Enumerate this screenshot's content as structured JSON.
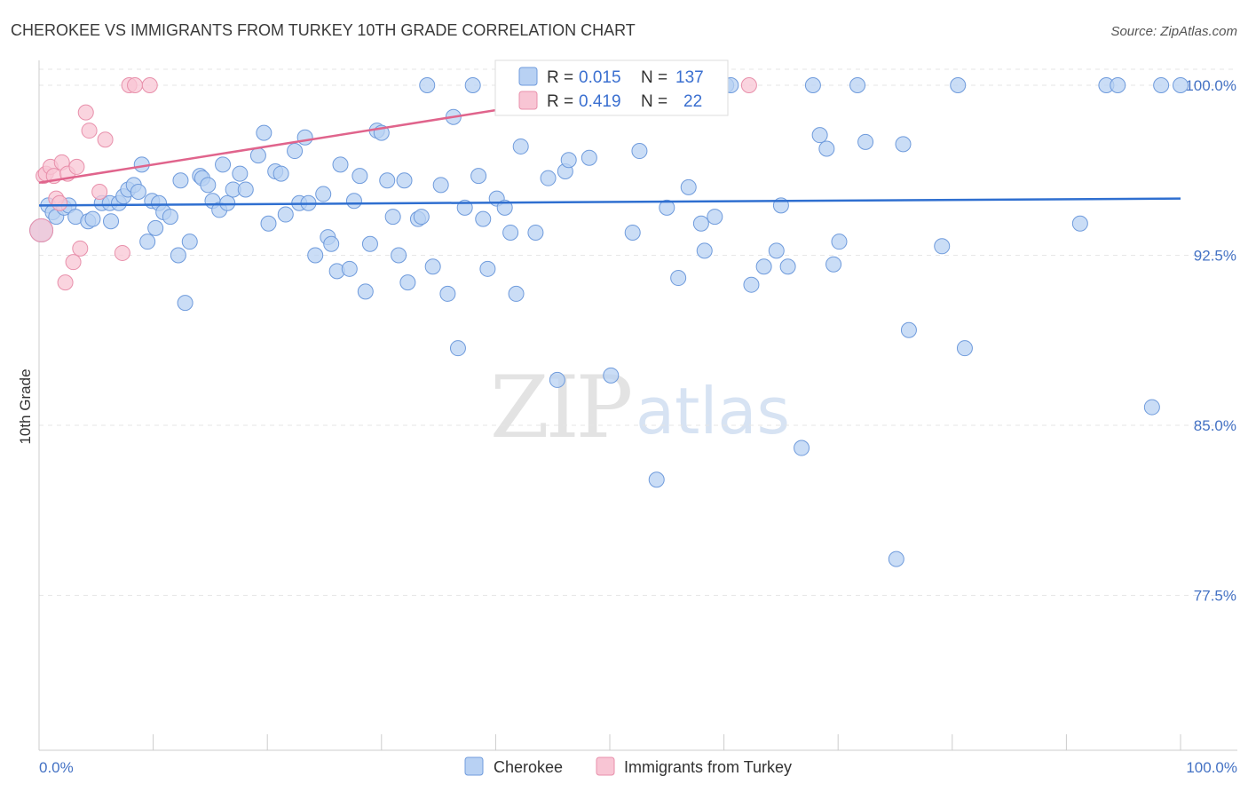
{
  "chart_data": {
    "type": "scatter",
    "title": "CHEROKEE VS IMMIGRANTS FROM TURKEY 10TH GRADE CORRELATION CHART",
    "source": "Source: ZipAtlas.com",
    "ylabel": "10th Grade",
    "xlabel": "",
    "xlim": [
      0,
      100
    ],
    "ylim": [
      70,
      101.2
    ],
    "x_tick_labels": [
      "0.0%",
      "100.0%"
    ],
    "y_ticks": [
      {
        "value": 100.0,
        "label": "100.0%"
      },
      {
        "value": 92.5,
        "label": "92.5%"
      },
      {
        "value": 85.0,
        "label": "85.0%"
      },
      {
        "value": 77.5,
        "label": "77.5%"
      }
    ],
    "watermark": {
      "zip": "ZIP",
      "atlas": "atlas"
    },
    "colors": {
      "cherokee_fill": "#b8d1f3",
      "cherokee_stroke": "#6f9bdc",
      "cherokee_line": "#2f6fd0",
      "turkey_fill": "#f8c5d4",
      "turkey_stroke": "#e890ab",
      "turkey_line": "#e0648c",
      "grid": "#e6e6e6",
      "axis_text": "#4472c4"
    },
    "legend": {
      "r_label": "R =",
      "n_label": "N =",
      "entries": [
        {
          "r": "0.015",
          "n": "137"
        },
        {
          "r": "0.419",
          "n": "22"
        }
      ]
    },
    "series": [
      {
        "name": "Cherokee",
        "trend": {
          "x": [
            0,
            100
          ],
          "y": [
            94.7,
            95.0
          ]
        },
        "points": [
          [
            0.2,
            93.6
          ],
          [
            0.8,
            94.7
          ],
          [
            1.2,
            94.4
          ],
          [
            1.5,
            94.2
          ],
          [
            2.2,
            94.6
          ],
          [
            2.6,
            94.7
          ],
          [
            3.2,
            94.2
          ],
          [
            4.3,
            94.0
          ],
          [
            4.7,
            94.1
          ],
          [
            5.5,
            94.8
          ],
          [
            6.2,
            94.8
          ],
          [
            6.3,
            94.0
          ],
          [
            7.0,
            94.8
          ],
          [
            7.4,
            95.1
          ],
          [
            7.8,
            95.4
          ],
          [
            8.3,
            95.6
          ],
          [
            8.7,
            95.3
          ],
          [
            9.0,
            96.5
          ],
          [
            9.5,
            93.1
          ],
          [
            9.9,
            94.9
          ],
          [
            10.2,
            93.7
          ],
          [
            10.5,
            94.8
          ],
          [
            10.9,
            94.4
          ],
          [
            11.5,
            94.2
          ],
          [
            12.2,
            92.5
          ],
          [
            12.4,
            95.8
          ],
          [
            12.8,
            90.4
          ],
          [
            13.2,
            93.1
          ],
          [
            14.1,
            96.0
          ],
          [
            14.3,
            95.9
          ],
          [
            14.8,
            95.6
          ],
          [
            15.2,
            94.9
          ],
          [
            15.8,
            94.5
          ],
          [
            16.1,
            96.5
          ],
          [
            16.5,
            94.8
          ],
          [
            17.0,
            95.4
          ],
          [
            17.6,
            96.1
          ],
          [
            18.1,
            95.4
          ],
          [
            19.2,
            96.9
          ],
          [
            19.7,
            97.9
          ],
          [
            20.1,
            93.9
          ],
          [
            20.7,
            96.2
          ],
          [
            21.2,
            96.1
          ],
          [
            21.6,
            94.3
          ],
          [
            22.4,
            97.1
          ],
          [
            22.8,
            94.8
          ],
          [
            23.3,
            97.7
          ],
          [
            23.6,
            94.8
          ],
          [
            24.2,
            92.5
          ],
          [
            24.9,
            95.2
          ],
          [
            25.3,
            93.3
          ],
          [
            25.6,
            93.0
          ],
          [
            26.1,
            91.8
          ],
          [
            26.4,
            96.5
          ],
          [
            27.2,
            91.9
          ],
          [
            27.6,
            94.9
          ],
          [
            28.1,
            96.0
          ],
          [
            28.6,
            90.9
          ],
          [
            29.0,
            93.0
          ],
          [
            29.6,
            98.0
          ],
          [
            30.0,
            97.9
          ],
          [
            30.5,
            95.8
          ],
          [
            31.0,
            94.2
          ],
          [
            31.5,
            92.5
          ],
          [
            32.0,
            95.8
          ],
          [
            32.3,
            91.3
          ],
          [
            33.2,
            94.1
          ],
          [
            33.5,
            94.2
          ],
          [
            34.0,
            100.0
          ],
          [
            34.5,
            92.0
          ],
          [
            35.2,
            95.6
          ],
          [
            35.8,
            90.8
          ],
          [
            36.3,
            98.6
          ],
          [
            36.7,
            88.4
          ],
          [
            37.3,
            94.6
          ],
          [
            38.0,
            100.0
          ],
          [
            38.5,
            96.0
          ],
          [
            38.9,
            94.1
          ],
          [
            39.3,
            91.9
          ],
          [
            40.1,
            95.0
          ],
          [
            40.8,
            94.6
          ],
          [
            41.3,
            93.5
          ],
          [
            41.8,
            90.8
          ],
          [
            42.2,
            97.3
          ],
          [
            43.5,
            93.5
          ],
          [
            44.6,
            95.9
          ],
          [
            45.4,
            87.0
          ],
          [
            46.1,
            96.2
          ],
          [
            46.4,
            96.7
          ],
          [
            47.5,
            100.0
          ],
          [
            47.8,
            100.0
          ],
          [
            48.2,
            96.8
          ],
          [
            48.9,
            100.0
          ],
          [
            49.2,
            99.0
          ],
          [
            50.1,
            87.2
          ],
          [
            51.0,
            100.0
          ],
          [
            52.0,
            93.5
          ],
          [
            52.6,
            97.1
          ],
          [
            54.1,
            82.6
          ],
          [
            55.0,
            94.6
          ],
          [
            56.0,
            91.5
          ],
          [
            56.9,
            95.5
          ],
          [
            58.0,
            93.9
          ],
          [
            58.3,
            92.7
          ],
          [
            59.2,
            94.2
          ],
          [
            60.2,
            100.0
          ],
          [
            60.6,
            100.0
          ],
          [
            62.4,
            91.2
          ],
          [
            63.5,
            92.0
          ],
          [
            64.6,
            92.7
          ],
          [
            65.0,
            94.7
          ],
          [
            65.6,
            92.0
          ],
          [
            66.8,
            84.0
          ],
          [
            67.8,
            100.0
          ],
          [
            68.4,
            97.8
          ],
          [
            69.0,
            97.2
          ],
          [
            69.6,
            92.1
          ],
          [
            70.1,
            93.1
          ],
          [
            71.7,
            100.0
          ],
          [
            72.4,
            97.5
          ],
          [
            75.1,
            79.1
          ],
          [
            75.7,
            97.4
          ],
          [
            76.2,
            89.2
          ],
          [
            79.1,
            92.9
          ],
          [
            80.5,
            100.0
          ],
          [
            81.1,
            88.4
          ],
          [
            91.2,
            93.9
          ],
          [
            93.5,
            100.0
          ],
          [
            94.5,
            100.0
          ],
          [
            97.5,
            85.8
          ],
          [
            98.3,
            100.0
          ],
          [
            100.0,
            100.0
          ]
        ]
      },
      {
        "name": "Immigrants from Turkey",
        "trend": {
          "x": [
            0,
            45
          ],
          "y": [
            95.7,
            99.3
          ]
        },
        "points": [
          [
            0.2,
            93.6
          ],
          [
            0.4,
            96.0
          ],
          [
            0.6,
            96.1
          ],
          [
            1.0,
            96.4
          ],
          [
            1.3,
            96.0
          ],
          [
            1.5,
            95.0
          ],
          [
            1.8,
            94.8
          ],
          [
            2.0,
            96.6
          ],
          [
            2.3,
            91.3
          ],
          [
            2.5,
            96.1
          ],
          [
            3.0,
            92.2
          ],
          [
            3.3,
            96.4
          ],
          [
            3.6,
            92.8
          ],
          [
            4.1,
            98.8
          ],
          [
            4.4,
            98.0
          ],
          [
            5.3,
            95.3
          ],
          [
            5.8,
            97.6
          ],
          [
            7.3,
            92.6
          ],
          [
            7.9,
            100.0
          ],
          [
            8.4,
            100.0
          ],
          [
            9.7,
            100.0
          ],
          [
            62.2,
            100.0
          ]
        ]
      }
    ]
  },
  "bottom_legend": [
    "Cherokee",
    "Immigrants from Turkey"
  ]
}
